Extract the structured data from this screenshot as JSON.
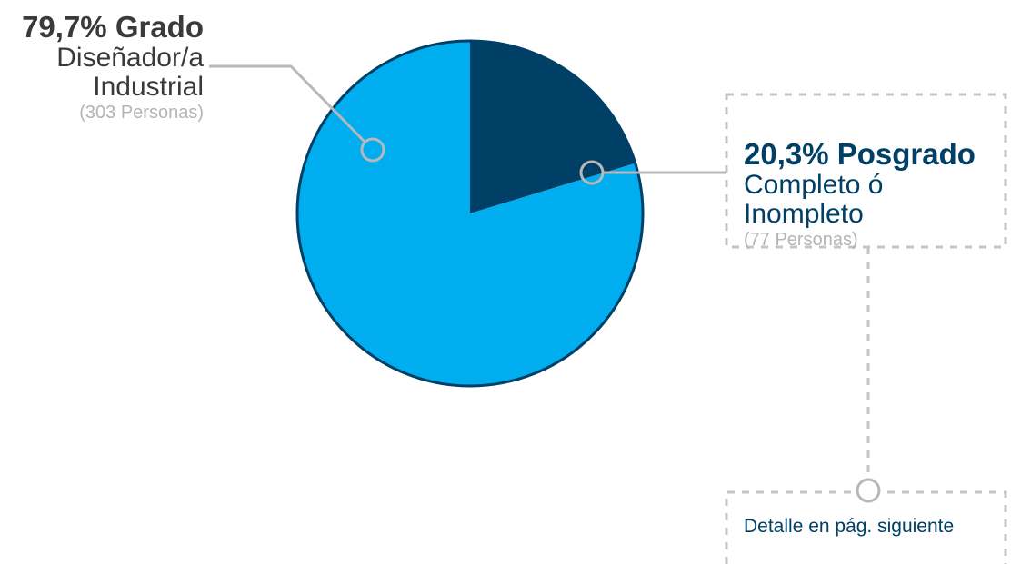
{
  "colors": {
    "grado": "#00adef",
    "posgrado": "#003f66",
    "outline": "#003f66",
    "connector": "#b8b8b8",
    "dashed_box": "#c4c4c4"
  },
  "chart_data": {
    "type": "pie",
    "title": "",
    "slices": [
      {
        "key": "posgrado",
        "percent_label": "20,3% Posgrado",
        "desc_lines": [
          "Completo ó",
          "Inompleto"
        ],
        "count_label": "(77 Personas)",
        "value": 20.3,
        "count": 77
      },
      {
        "key": "grado",
        "percent_label": "79,7% Grado",
        "desc_lines": [
          "Diseñador/a",
          "Industrial"
        ],
        "count_label": "(303 Personas)",
        "value": 79.7,
        "count": 303
      }
    ],
    "start_angle_deg": 90,
    "direction": "clockwise",
    "note": "Detalle en pág. siguiente"
  }
}
